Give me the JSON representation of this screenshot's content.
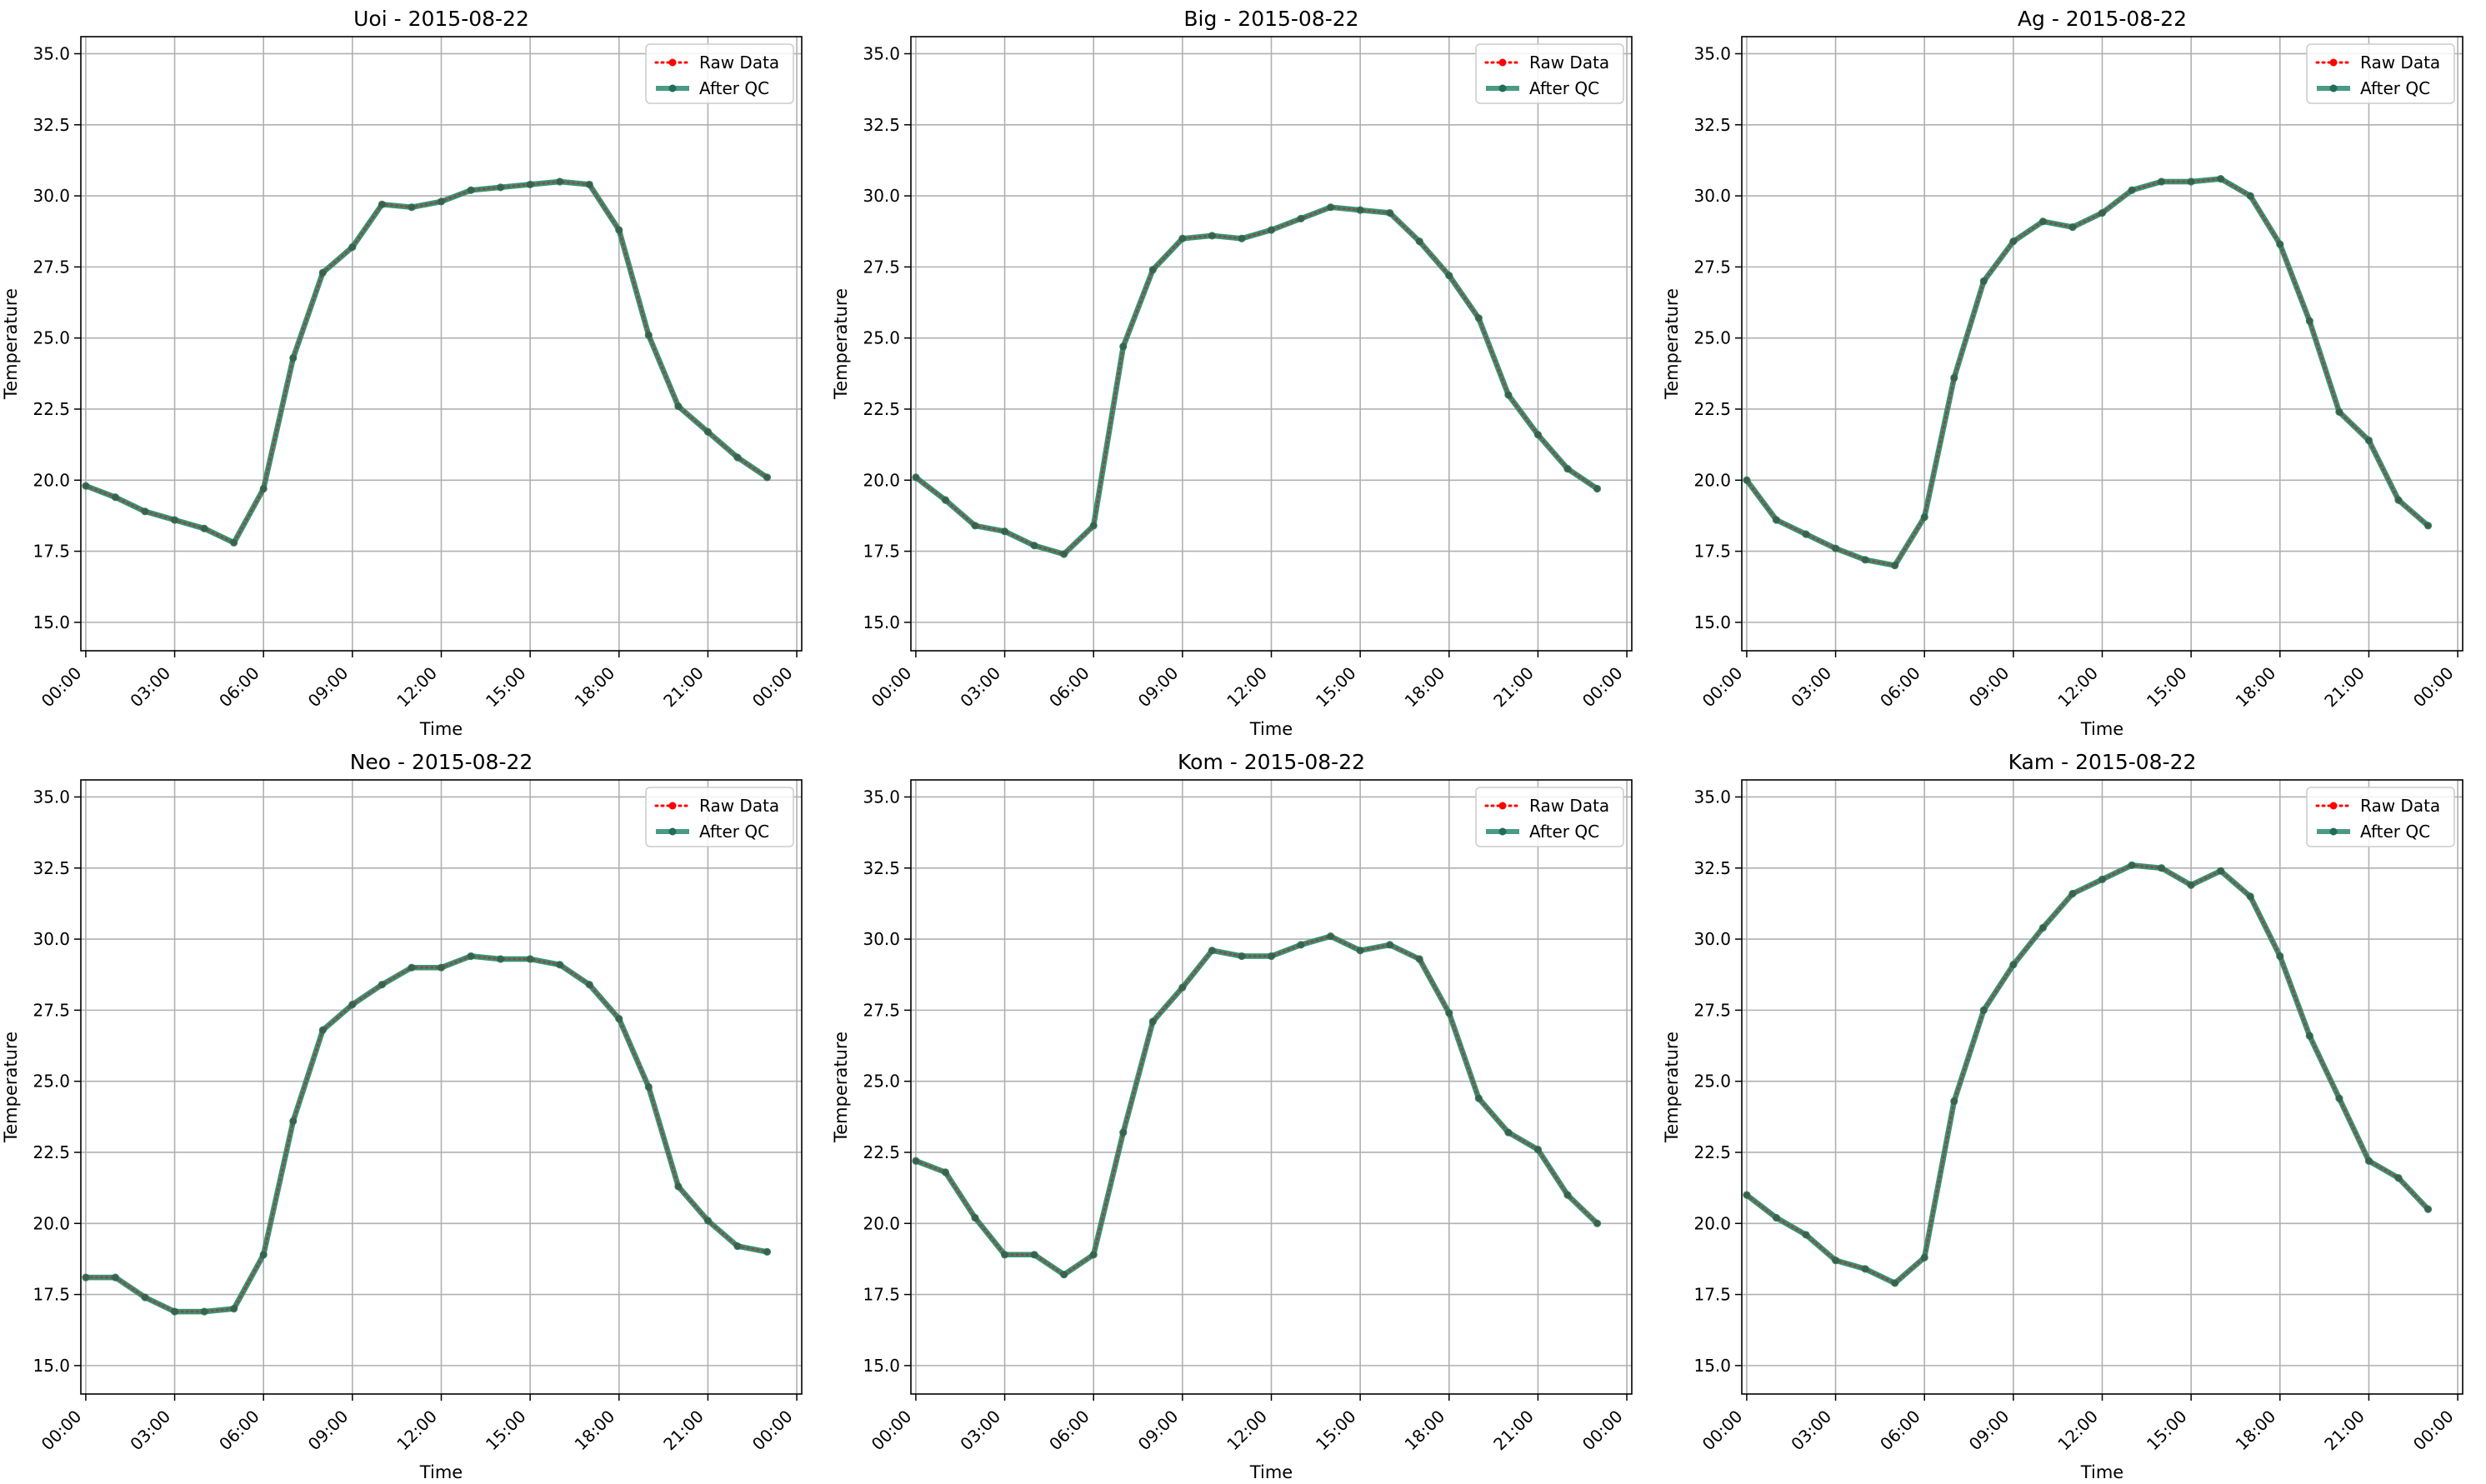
{
  "figure": {
    "x_tick_labels": [
      "00:00",
      "03:00",
      "06:00",
      "09:00",
      "12:00",
      "15:00",
      "18:00",
      "21:00",
      "00:00"
    ],
    "y_ticks": [
      15.0,
      17.5,
      20.0,
      22.5,
      25.0,
      27.5,
      30.0,
      32.5,
      35.0
    ],
    "xlabel": "Time",
    "ylabel": "Temperature",
    "legend": {
      "placement": "top-right",
      "entries": [
        "Raw Data",
        "After QC"
      ]
    },
    "colors": {
      "raw": "#ff0000",
      "qc": "#2a8a6e",
      "qc_marker": "#1f6e55",
      "grid": "#b0b0b0"
    }
  },
  "chart_data": [
    {
      "type": "line",
      "title": "Uoi - 2015-08-22",
      "xlabel": "Time",
      "ylabel": "Temperature",
      "x": [
        "00:00",
        "01:00",
        "02:00",
        "03:00",
        "04:00",
        "05:00",
        "06:00",
        "07:00",
        "08:00",
        "09:00",
        "10:00",
        "11:00",
        "12:00",
        "13:00",
        "14:00",
        "15:00",
        "16:00",
        "17:00",
        "18:00",
        "19:00",
        "20:00",
        "21:00",
        "22:00",
        "23:00"
      ],
      "xlim": [
        "-00:10",
        "24:10"
      ],
      "ylim": [
        14.0,
        35.6
      ],
      "grid": true,
      "series": [
        {
          "name": "Raw Data",
          "values": [
            19.8,
            19.4,
            18.9,
            18.6,
            18.3,
            17.8,
            19.7,
            24.3,
            27.3,
            28.2,
            29.7,
            29.6,
            29.8,
            30.2,
            30.3,
            30.4,
            30.5,
            30.4,
            28.8,
            25.1,
            22.6,
            21.7,
            20.8,
            20.1
          ]
        },
        {
          "name": "After QC",
          "values": [
            19.8,
            19.4,
            18.9,
            18.6,
            18.3,
            17.8,
            19.7,
            24.3,
            27.3,
            28.2,
            29.7,
            29.6,
            29.8,
            30.2,
            30.3,
            30.4,
            30.5,
            30.4,
            28.8,
            25.1,
            22.6,
            21.7,
            20.8,
            20.1
          ]
        }
      ]
    },
    {
      "type": "line",
      "title": "Big - 2015-08-22",
      "xlabel": "Time",
      "ylabel": "Temperature",
      "x": [
        "00:00",
        "01:00",
        "02:00",
        "03:00",
        "04:00",
        "05:00",
        "06:00",
        "07:00",
        "08:00",
        "09:00",
        "10:00",
        "11:00",
        "12:00",
        "13:00",
        "14:00",
        "15:00",
        "16:00",
        "17:00",
        "18:00",
        "19:00",
        "20:00",
        "21:00",
        "22:00",
        "23:00"
      ],
      "xlim": [
        "-00:10",
        "24:10"
      ],
      "ylim": [
        14.0,
        35.6
      ],
      "grid": true,
      "series": [
        {
          "name": "Raw Data",
          "values": [
            20.1,
            19.3,
            18.4,
            18.2,
            17.7,
            17.4,
            18.4,
            24.7,
            27.4,
            28.5,
            28.6,
            28.5,
            28.8,
            29.2,
            29.6,
            29.5,
            29.4,
            28.4,
            27.2,
            25.7,
            23.0,
            21.6,
            20.4,
            19.7
          ]
        },
        {
          "name": "After QC",
          "values": [
            20.1,
            19.3,
            18.4,
            18.2,
            17.7,
            17.4,
            18.4,
            24.7,
            27.4,
            28.5,
            28.6,
            28.5,
            28.8,
            29.2,
            29.6,
            29.5,
            29.4,
            28.4,
            27.2,
            25.7,
            23.0,
            21.6,
            20.4,
            19.7
          ]
        }
      ]
    },
    {
      "type": "line",
      "title": "Ag - 2015-08-22",
      "xlabel": "Time",
      "ylabel": "Temperature",
      "x": [
        "00:00",
        "01:00",
        "02:00",
        "03:00",
        "04:00",
        "05:00",
        "06:00",
        "07:00",
        "08:00",
        "09:00",
        "10:00",
        "11:00",
        "12:00",
        "13:00",
        "14:00",
        "15:00",
        "16:00",
        "17:00",
        "18:00",
        "19:00",
        "20:00",
        "21:00",
        "22:00",
        "23:00"
      ],
      "xlim": [
        "-00:10",
        "24:10"
      ],
      "ylim": [
        14.0,
        35.6
      ],
      "grid": true,
      "series": [
        {
          "name": "Raw Data",
          "values": [
            20.0,
            18.6,
            18.1,
            17.6,
            17.2,
            17.0,
            18.7,
            23.6,
            27.0,
            28.4,
            29.1,
            28.9,
            29.4,
            30.2,
            30.5,
            30.5,
            30.6,
            30.0,
            28.3,
            25.6,
            22.4,
            21.4,
            19.3,
            18.4
          ]
        },
        {
          "name": "After QC",
          "values": [
            20.0,
            18.6,
            18.1,
            17.6,
            17.2,
            17.0,
            18.7,
            23.6,
            27.0,
            28.4,
            29.1,
            28.9,
            29.4,
            30.2,
            30.5,
            30.5,
            30.6,
            30.0,
            28.3,
            25.6,
            22.4,
            21.4,
            19.3,
            18.4
          ]
        }
      ]
    },
    {
      "type": "line",
      "title": "Neo - 2015-08-22",
      "xlabel": "Time",
      "ylabel": "Temperature",
      "x": [
        "00:00",
        "01:00",
        "02:00",
        "03:00",
        "04:00",
        "05:00",
        "06:00",
        "07:00",
        "08:00",
        "09:00",
        "10:00",
        "11:00",
        "12:00",
        "13:00",
        "14:00",
        "15:00",
        "16:00",
        "17:00",
        "18:00",
        "19:00",
        "20:00",
        "21:00",
        "22:00",
        "23:00"
      ],
      "xlim": [
        "-00:10",
        "24:10"
      ],
      "ylim": [
        14.0,
        35.6
      ],
      "grid": true,
      "series": [
        {
          "name": "Raw Data",
          "values": [
            18.1,
            18.1,
            17.4,
            16.9,
            16.9,
            17.0,
            18.9,
            23.6,
            26.8,
            27.7,
            28.4,
            29.0,
            29.0,
            29.4,
            29.3,
            29.3,
            29.1,
            28.4,
            27.2,
            24.8,
            21.3,
            20.1,
            19.2,
            19.0
          ]
        },
        {
          "name": "After QC",
          "values": [
            18.1,
            18.1,
            17.4,
            16.9,
            16.9,
            17.0,
            18.9,
            23.6,
            26.8,
            27.7,
            28.4,
            29.0,
            29.0,
            29.4,
            29.3,
            29.3,
            29.1,
            28.4,
            27.2,
            24.8,
            21.3,
            20.1,
            19.2,
            19.0
          ]
        }
      ]
    },
    {
      "type": "line",
      "title": "Kom - 2015-08-22",
      "xlabel": "Time",
      "ylabel": "Temperature",
      "x": [
        "00:00",
        "01:00",
        "02:00",
        "03:00",
        "04:00",
        "05:00",
        "06:00",
        "07:00",
        "08:00",
        "09:00",
        "10:00",
        "11:00",
        "12:00",
        "13:00",
        "14:00",
        "15:00",
        "16:00",
        "17:00",
        "18:00",
        "19:00",
        "20:00",
        "21:00",
        "22:00",
        "23:00"
      ],
      "xlim": [
        "-00:10",
        "24:10"
      ],
      "ylim": [
        14.0,
        35.6
      ],
      "grid": true,
      "series": [
        {
          "name": "Raw Data",
          "values": [
            22.2,
            21.8,
            20.2,
            18.9,
            18.9,
            18.2,
            18.9,
            23.2,
            27.1,
            28.3,
            29.6,
            29.4,
            29.4,
            29.8,
            30.1,
            29.6,
            29.8,
            29.3,
            27.4,
            24.4,
            23.2,
            22.6,
            21.0,
            20.0
          ]
        },
        {
          "name": "After QC",
          "values": [
            22.2,
            21.8,
            20.2,
            18.9,
            18.9,
            18.2,
            18.9,
            23.2,
            27.1,
            28.3,
            29.6,
            29.4,
            29.4,
            29.8,
            30.1,
            29.6,
            29.8,
            29.3,
            27.4,
            24.4,
            23.2,
            22.6,
            21.0,
            20.0
          ]
        }
      ]
    },
    {
      "type": "line",
      "title": "Kam - 2015-08-22",
      "xlabel": "Time",
      "ylabel": "Temperature",
      "x": [
        "00:00",
        "01:00",
        "02:00",
        "03:00",
        "04:00",
        "05:00",
        "06:00",
        "07:00",
        "08:00",
        "09:00",
        "10:00",
        "11:00",
        "12:00",
        "13:00",
        "14:00",
        "15:00",
        "16:00",
        "17:00",
        "18:00",
        "19:00",
        "20:00",
        "21:00",
        "22:00",
        "23:00"
      ],
      "xlim": [
        "-00:10",
        "24:10"
      ],
      "ylim": [
        14.0,
        35.6
      ],
      "grid": true,
      "series": [
        {
          "name": "Raw Data",
          "values": [
            21.0,
            20.2,
            19.6,
            18.7,
            18.4,
            17.9,
            18.8,
            24.3,
            27.5,
            29.1,
            30.4,
            31.6,
            32.1,
            32.6,
            32.5,
            31.9,
            32.4,
            31.5,
            29.4,
            26.6,
            24.4,
            22.2,
            21.6,
            20.5
          ]
        },
        {
          "name": "After QC",
          "values": [
            21.0,
            20.2,
            19.6,
            18.7,
            18.4,
            17.9,
            18.8,
            24.3,
            27.5,
            29.1,
            30.4,
            31.6,
            32.1,
            32.6,
            32.5,
            31.9,
            32.4,
            31.5,
            29.4,
            26.6,
            24.4,
            22.2,
            21.6,
            20.5
          ]
        }
      ]
    }
  ]
}
